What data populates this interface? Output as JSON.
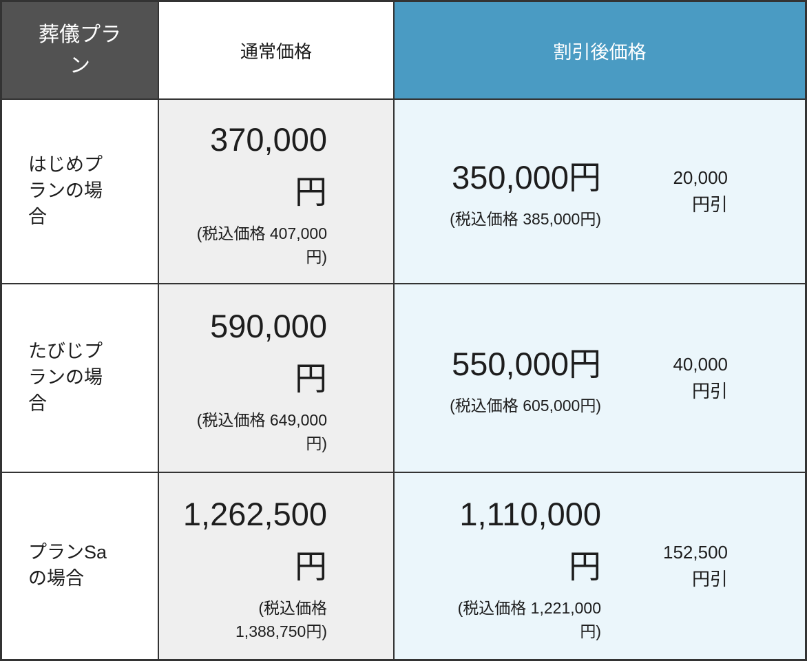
{
  "colors": {
    "header_gray": "#525252",
    "accent_blue": "#4a9bc3",
    "normal_col_bg": "#efefef",
    "discount_col_bg": "#ebf6fb",
    "border": "#333333",
    "text": "#1d1d1d",
    "header_text": "#ffffff"
  },
  "table": {
    "headers": {
      "plan": "葬儀プラン",
      "normal": "通常価格",
      "discounted": "割引後価格"
    },
    "rows": [
      {
        "plan": "はじめプランの場合",
        "normal": {
          "price_lines": [
            "370,000",
            "円"
          ],
          "tax_lines": [
            "(税込価格 407,000",
            "円)"
          ]
        },
        "discounted": {
          "price_lines": [
            "350,000円"
          ],
          "tax_lines": [
            "(税込価格 385,000円)"
          ]
        },
        "saving_lines": [
          "20,000",
          "円引"
        ]
      },
      {
        "plan": "たびじプランの場合",
        "normal": {
          "price_lines": [
            "590,000",
            "円"
          ],
          "tax_lines": [
            "(税込価格 649,000",
            "円)"
          ]
        },
        "discounted": {
          "price_lines": [
            "550,000円"
          ],
          "tax_lines": [
            "(税込価格 605,000円)"
          ]
        },
        "saving_lines": [
          "40,000",
          "円引"
        ]
      },
      {
        "plan": "プランSaの場合",
        "normal": {
          "price_lines": [
            "1,262,500",
            "円"
          ],
          "tax_lines": [
            "(税込価格",
            "1,388,750円)"
          ]
        },
        "discounted": {
          "price_lines": [
            "1,110,000",
            "円"
          ],
          "tax_lines": [
            "(税込価格 1,221,000",
            "円)"
          ]
        },
        "saving_lines": [
          "152,500",
          "円引"
        ]
      }
    ]
  }
}
